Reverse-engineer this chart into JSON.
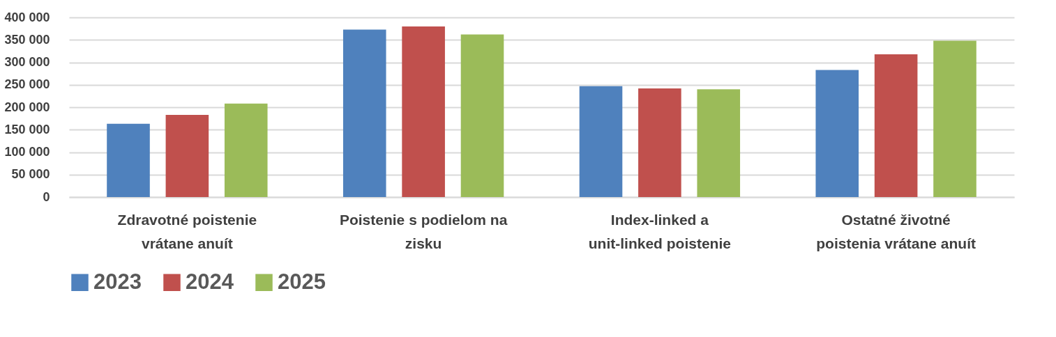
{
  "chart_data": {
    "type": "bar",
    "categories": [
      "Zdravotné poistenie vrátane anuít",
      "Poistenie s podielom na zisku",
      "Index-linked a unit-linked poistenie",
      "Ostatné životné poistenia vrátane anuít"
    ],
    "series": [
      {
        "name": "2023",
        "color": "#4f81bd",
        "values": [
          163000,
          373000,
          247000,
          283000
        ]
      },
      {
        "name": "2024",
        "color": "#c0504d",
        "values": [
          183000,
          380000,
          242000,
          318000
        ]
      },
      {
        "name": "2025",
        "color": "#9bbb59",
        "values": [
          208000,
          362000,
          240000,
          348000
        ]
      }
    ],
    "ylim": [
      0,
      400000
    ],
    "yticks": [
      0,
      {
        "value": 50000,
        "label": "50 000"
      },
      {
        "value": 100000,
        "label": "100 000"
      },
      {
        "value": 150000,
        "label": "150 000"
      },
      {
        "value": 200000,
        "label": "200 000"
      },
      {
        "value": 250000,
        "label": "250 000"
      },
      {
        "value": 300000,
        "label": "300 000"
      },
      {
        "value": 350000,
        "label": "350 000"
      },
      {
        "value": 400000,
        "label": "400 000"
      }
    ],
    "grid": "y",
    "legend": "bottom"
  }
}
